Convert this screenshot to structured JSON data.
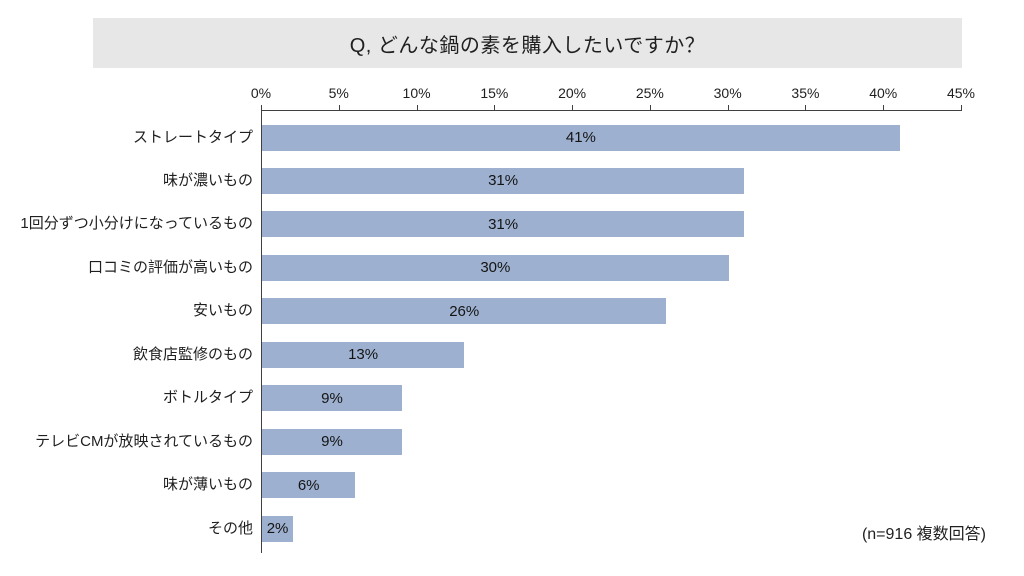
{
  "title": "Q, どんな鍋の素を購入したいですか？",
  "note": "(n=916 複数回答)",
  "colors": {
    "banner_bg": "#E7E7E7",
    "bar": "#9DB0CF",
    "text": "#1F1F1F",
    "axis": "#404040"
  },
  "chart_data": {
    "type": "bar",
    "orientation": "horizontal",
    "title": "Q, どんな鍋の素を購入したいですか？",
    "categories": [
      "ストレートタイプ",
      "味が濃いもの",
      "1回分ずつ小分けになっているもの",
      "口コミの評価が高いもの",
      "安いもの",
      "飲食店監修のもの",
      "ボトルタイプ",
      "テレビCMが放映されているもの",
      "味が薄いもの",
      "その他"
    ],
    "values": [
      41,
      31,
      31,
      30,
      26,
      13,
      9,
      9,
      6,
      2
    ],
    "value_labels": [
      "41%",
      "31%",
      "31%",
      "30%",
      "26%",
      "13%",
      "9%",
      "9%",
      "6%",
      "2%"
    ],
    "xlabel": "",
    "ylabel": "",
    "xlim": [
      0,
      45
    ],
    "x_tick_values": [
      0,
      5,
      10,
      15,
      20,
      25,
      30,
      35,
      40,
      45
    ],
    "x_ticks": [
      "0%",
      "5%",
      "10%",
      "15%",
      "20%",
      "25%",
      "30%",
      "35%",
      "40%",
      "45%"
    ],
    "grid": false,
    "legend": false,
    "value_label_position": "center",
    "annotation": "(n=916 複数回答)"
  }
}
